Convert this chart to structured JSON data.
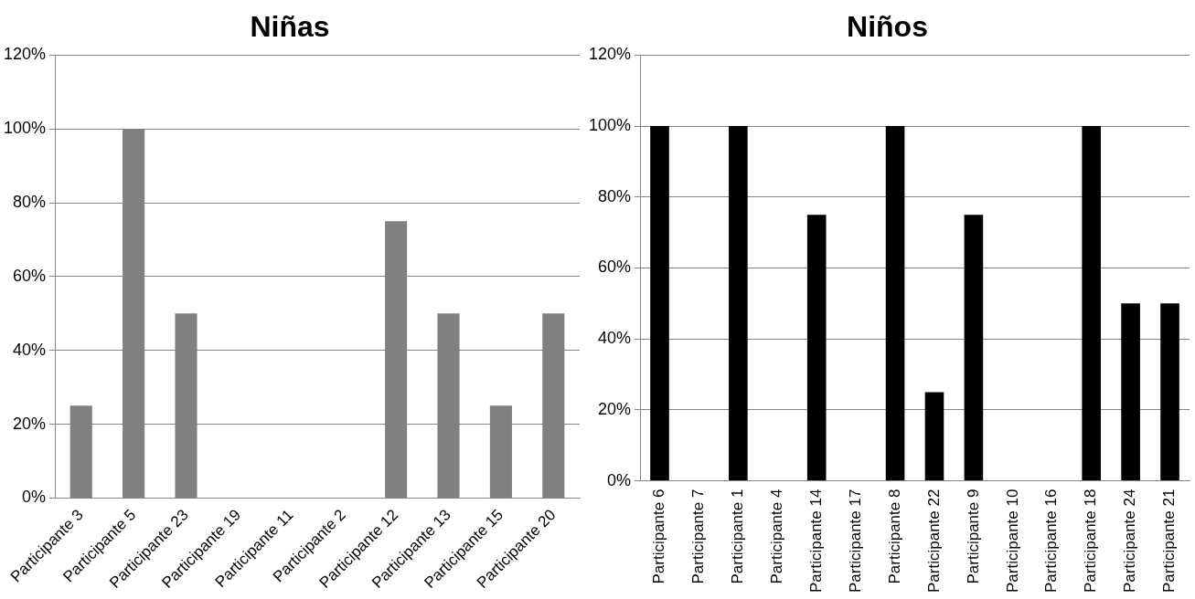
{
  "chart_data": [
    {
      "type": "bar",
      "title": "Niñas",
      "categories": [
        "Participante 3",
        "Participante 5",
        "Participante 23",
        "Participante 19",
        "Participante 11",
        "Participante 2",
        "Participante 12",
        "Participante 13",
        "Participante 15",
        "Participante 20"
      ],
      "values": [
        25,
        100,
        50,
        0,
        0,
        0,
        75,
        50,
        25,
        50
      ],
      "color": "#808080",
      "ylim": [
        0,
        120
      ],
      "yticks": [
        {
          "value": 0,
          "label": "0%"
        },
        {
          "value": 20,
          "label": "20%"
        },
        {
          "value": 40,
          "label": "40%"
        },
        {
          "value": 60,
          "label": "60%"
        },
        {
          "value": 80,
          "label": "80%"
        },
        {
          "value": 100,
          "label": "100%"
        },
        {
          "value": 120,
          "label": "120%"
        }
      ],
      "grid": "y",
      "legend": false
    },
    {
      "type": "bar",
      "title": "Niños",
      "categories": [
        "Participante 6",
        "Participante 7",
        "Participante 1",
        "Participante 4",
        "Participante 14",
        "Participante 17",
        "Participante 8",
        "Participante 22",
        "Participante 9",
        "Participante 10",
        "Participante 16",
        "Participante 18",
        "Participante 24",
        "Participante 21"
      ],
      "values": [
        100,
        0,
        100,
        0,
        75,
        0,
        100,
        25,
        75,
        0,
        0,
        100,
        50,
        50
      ],
      "color": "#000000",
      "ylim": [
        0,
        120
      ],
      "yticks": [
        {
          "value": 0,
          "label": "0%"
        },
        {
          "value": 20,
          "label": "20%"
        },
        {
          "value": 40,
          "label": "40%"
        },
        {
          "value": 60,
          "label": "60%"
        },
        {
          "value": 80,
          "label": "80%"
        },
        {
          "value": 100,
          "label": "100%"
        },
        {
          "value": 120,
          "label": "120%"
        }
      ],
      "grid": "y",
      "legend": false
    }
  ]
}
